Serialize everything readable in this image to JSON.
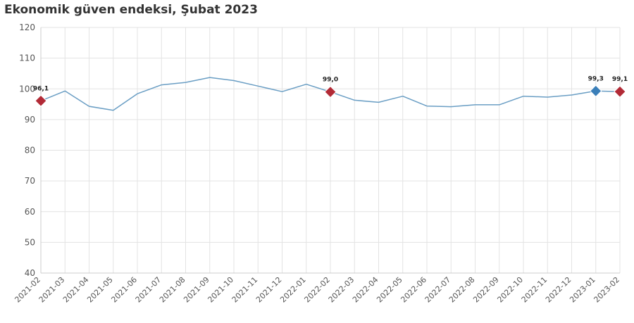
{
  "chart_data": {
    "type": "line",
    "title": "Ekonomik güven endeksi, Şubat 2023",
    "xlabel": "",
    "ylabel": "",
    "ylim": [
      40,
      120
    ],
    "yticks": [
      "40",
      "50",
      "60",
      "70",
      "80",
      "90",
      "100",
      "110",
      "120"
    ],
    "grid": true,
    "categories": [
      "2021-02",
      "2021-03",
      "2021-04",
      "2021-05",
      "2021-06",
      "2021-07",
      "2021-08",
      "2021-09",
      "2021-10",
      "2021-11",
      "2021-12",
      "2022-01",
      "2022-02",
      "2022-03",
      "2022-04",
      "2022-05",
      "2022-06",
      "2022-07",
      "2022-08",
      "2022-09",
      "2022-10",
      "2022-11",
      "2022-12",
      "2023-01",
      "2023-02"
    ],
    "series": [
      {
        "values": [
          96.1,
          99.3,
          94.3,
          93.0,
          98.4,
          101.3,
          102.1,
          103.7,
          102.7,
          100.9,
          99.1,
          101.5,
          99.0,
          96.3,
          95.6,
          97.6,
          94.4,
          94.2,
          94.8,
          94.8,
          97.6,
          97.3,
          98.0,
          99.3,
          99.1
        ],
        "color": "#6a9ec4"
      }
    ],
    "highlights": [
      {
        "index": 0,
        "label": "96,1",
        "color": "#b22a36"
      },
      {
        "index": 12,
        "label": "99,0",
        "color": "#b22a36"
      },
      {
        "index": 23,
        "label": "99,3",
        "color": "#3b7fb9"
      },
      {
        "index": 24,
        "label": "99,1",
        "color": "#b22a36"
      }
    ]
  }
}
